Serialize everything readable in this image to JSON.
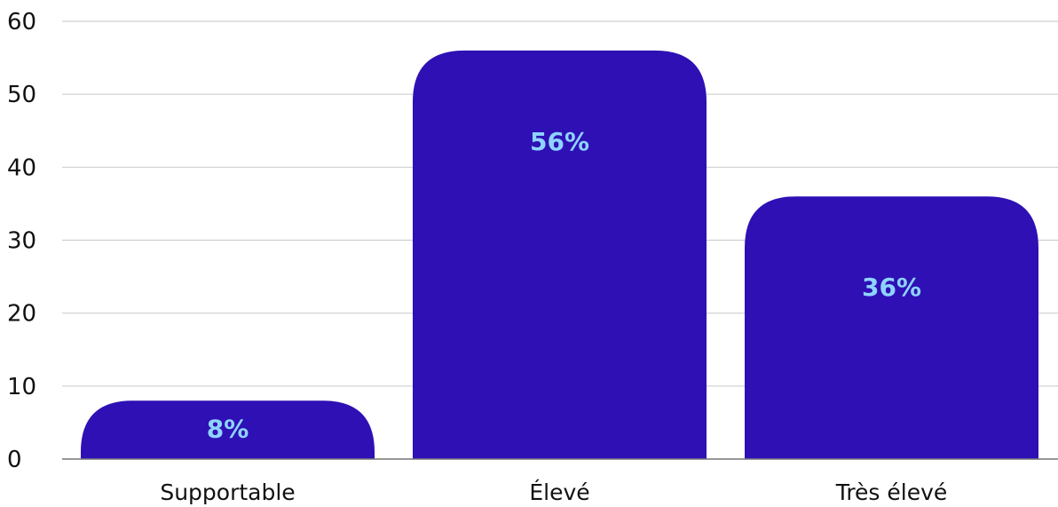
{
  "chart_data": {
    "type": "bar",
    "categories": [
      "Supportable",
      "Élevé",
      "Très élevé"
    ],
    "values": [
      8,
      56,
      36
    ],
    "data_labels": [
      "8%",
      "56%",
      "36%"
    ],
    "ylim": [
      0,
      60
    ],
    "yticks": [
      "0",
      "10",
      "20",
      "30",
      "40",
      "50",
      "60"
    ],
    "grid": true,
    "legend": "none",
    "title": "",
    "xlabel": "",
    "ylabel": ""
  },
  "colors": {
    "bar": "#2e10b4",
    "data_label": "#8fd3ff",
    "grid": "#cfcfcf",
    "axis": "#777777",
    "text": "#111111"
  }
}
